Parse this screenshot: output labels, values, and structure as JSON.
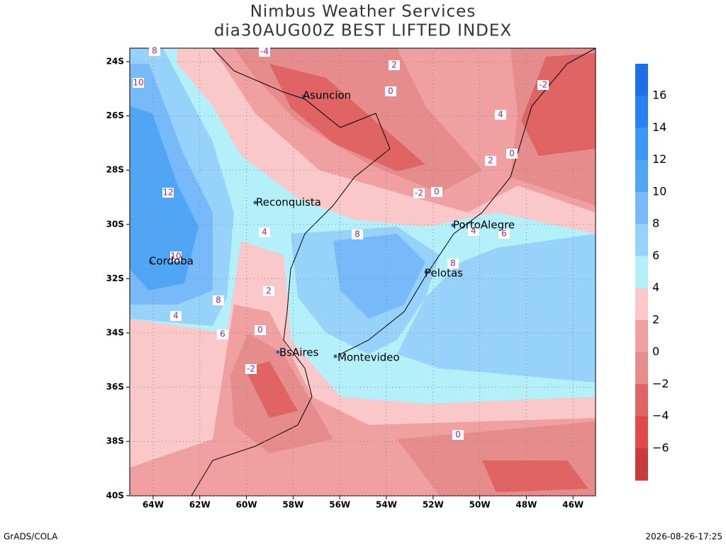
{
  "header": {
    "title": "Nimbus Weather Services",
    "subtitle": "dia30AUG00Z BEST LIFTED INDEX"
  },
  "map": {
    "lat_labels": [
      "24S",
      "26S",
      "28S",
      "30S",
      "32S",
      "34S",
      "36S",
      "38S",
      "40S"
    ],
    "lon_labels": [
      "64W",
      "62W",
      "60W",
      "58W",
      "56W",
      "54W",
      "52W",
      "50W",
      "48W",
      "46W"
    ],
    "cities": [
      "Asuncion",
      "Reconquista",
      "PortoAlegre",
      "Pelotas",
      "Cordoba",
      "BsAires",
      "Montevideo"
    ],
    "contour_labels": [
      "-4",
      "8",
      "10",
      "2",
      "0",
      "-2",
      "4",
      "2",
      "0",
      "-2",
      "0",
      "12",
      "8",
      "4",
      "4",
      "6",
      "10",
      "8",
      "2",
      "8",
      "4",
      "6",
      "0",
      "-2",
      "0"
    ]
  },
  "colorbar": {
    "labels": [
      "16",
      "14",
      "12",
      "10",
      "8",
      "6",
      "4",
      "2",
      "0",
      "−2",
      "−4",
      "−6"
    ]
  },
  "footer": {
    "left": "GrADS/COLA",
    "right": "2026-08-26-17:25"
  }
}
